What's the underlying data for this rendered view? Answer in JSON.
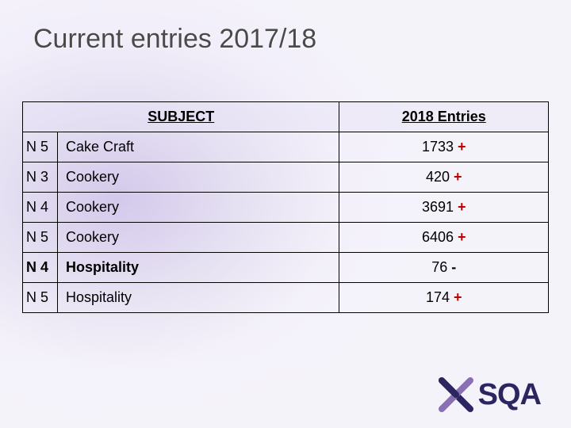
{
  "title": "Current entries 2017/18",
  "table": {
    "headers": {
      "subject": "SUBJECT",
      "entries": "2018 Entries"
    },
    "rows": [
      {
        "level": "N 5",
        "subject": "Cake Craft",
        "value": "1733",
        "delta": "+",
        "bold": false
      },
      {
        "level": "N 3",
        "subject": "Cookery",
        "value": "420",
        "delta": "+",
        "bold": false
      },
      {
        "level": "N 4",
        "subject": "Cookery",
        "value": "3691",
        "delta": "+",
        "bold": false
      },
      {
        "level": "N 5",
        "subject": "Cookery",
        "value": "6406",
        "delta": "+",
        "bold": false
      },
      {
        "level": "N 4",
        "subject": "Hospitality",
        "value": "76",
        "delta": "-",
        "bold": true
      },
      {
        "level": "N 5",
        "subject": "Hospitality",
        "value": "174",
        "delta": "+",
        "bold": false
      }
    ]
  },
  "logo": {
    "text": "SQA"
  },
  "colors": {
    "delta_plus": "#c00000",
    "delta_minus": "#000000",
    "logo_text": "#2b2660",
    "logo_purple": "#5b3e8f",
    "logo_navy": "#2b2660"
  }
}
